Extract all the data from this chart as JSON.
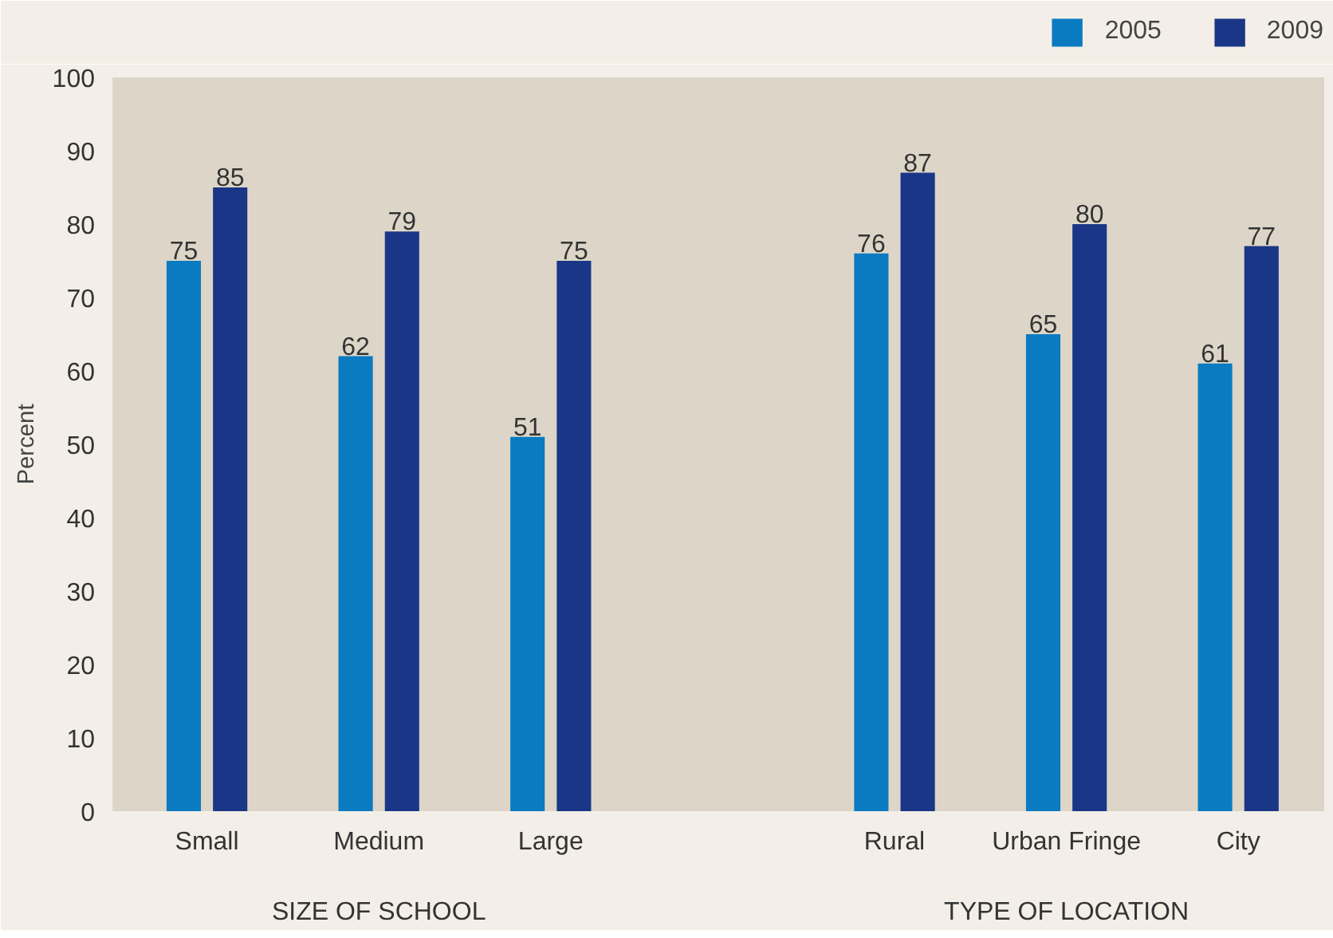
{
  "chart_data": {
    "type": "bar",
    "ylabel": "Percent",
    "categories": [
      "Small",
      "Medium",
      "Large",
      null,
      "Rural",
      "Urban Fringe",
      "City"
    ],
    "series": [
      {
        "name": "2005",
        "color": "#0a7bc1",
        "values": [
          75,
          62,
          51,
          null,
          76,
          65,
          61
        ]
      },
      {
        "name": "2009",
        "color": "#1a3787",
        "values": [
          85,
          79,
          75,
          null,
          87,
          80,
          77
        ]
      }
    ],
    "ylim": [
      0,
      100
    ],
    "yticks": [
      0,
      10,
      20,
      30,
      40,
      50,
      60,
      70,
      80,
      90,
      100
    ],
    "data_labels": true,
    "grid": false,
    "legend": "top right",
    "annotations": [
      "SIZE OF SCHOOL",
      "TYPE OF LOCATION"
    ]
  }
}
